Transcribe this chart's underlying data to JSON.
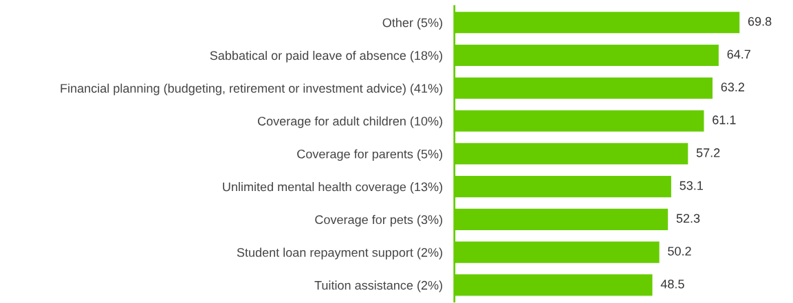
{
  "chart_data": {
    "type": "bar",
    "orientation": "horizontal",
    "categories": [
      "Other (5%)",
      "Sabbatical or paid leave of absence (18%)",
      "Financial planning (budgeting, retirement or investment advice) (41%)",
      "Coverage for adult children (10%)",
      "Coverage for parents (5%)",
      "Unlimited mental health coverage (13%)",
      "Coverage for pets (3%)",
      "Student loan repayment support (2%)",
      "Tuition assistance (2%)"
    ],
    "values": [
      69.8,
      64.7,
      63.2,
      61.1,
      57.2,
      53.1,
      52.3,
      50.2,
      48.5
    ],
    "color": "#66cc00",
    "data_labels": true,
    "tick_labels": "y",
    "grid": false,
    "legend": false
  }
}
